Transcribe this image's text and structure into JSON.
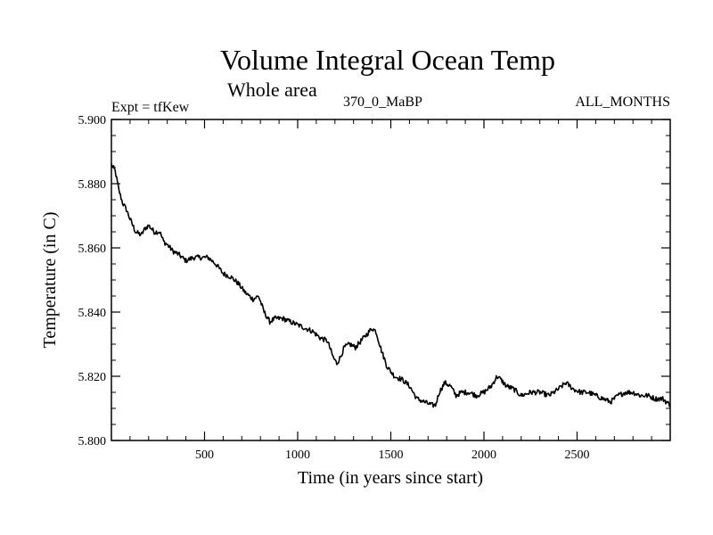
{
  "chart_data": {
    "type": "line",
    "title": "Volume Integral Ocean Temp",
    "subtitle": "Whole area",
    "annotations": {
      "expt": "Expt = tfKew",
      "run": "370_0_MaBP",
      "months": "ALL_MONTHS"
    },
    "xlabel": "Time (in years since start)",
    "ylabel": "Temperature (in C)",
    "xlim": [
      0,
      3000
    ],
    "ylim": [
      5.8,
      5.9
    ],
    "x_ticks": [
      500,
      1000,
      1500,
      2000,
      2500
    ],
    "x_tick_labels": [
      "500",
      "1000",
      "1500",
      "2000",
      "2500"
    ],
    "y_ticks": [
      5.8,
      5.82,
      5.84,
      5.86,
      5.88,
      5.9
    ],
    "y_tick_labels": [
      "5.800",
      "5.820",
      "5.840",
      "5.860",
      "5.880",
      "5.900"
    ],
    "grid": false,
    "legend": "none",
    "line_color": "#000000",
    "series": [
      {
        "x": [
          0,
          20,
          40,
          60,
          80,
          100,
          130,
          160,
          180,
          200,
          230,
          260,
          280,
          300,
          330,
          360,
          400,
          440,
          480,
          520,
          560,
          600,
          640,
          680,
          720,
          760,
          790,
          820,
          850,
          880,
          920,
          960,
          1000,
          1040,
          1080,
          1120,
          1160,
          1190,
          1210,
          1230,
          1250,
          1280,
          1310,
          1340,
          1370,
          1400,
          1420,
          1450,
          1480,
          1520,
          1560,
          1600,
          1640,
          1680,
          1720,
          1740,
          1760,
          1790,
          1820,
          1850,
          1880,
          1920,
          1960,
          2000,
          2040,
          2070,
          2090,
          2120,
          2160,
          2200,
          2250,
          2300,
          2350,
          2400,
          2440,
          2480,
          2520,
          2560,
          2600,
          2640,
          2680,
          2720,
          2760,
          2800,
          2840,
          2880,
          2920,
          2960,
          3000
        ],
        "y": [
          5.886,
          5.884,
          5.878,
          5.874,
          5.872,
          5.869,
          5.865,
          5.864,
          5.866,
          5.867,
          5.865,
          5.865,
          5.862,
          5.861,
          5.859,
          5.858,
          5.856,
          5.857,
          5.857,
          5.857,
          5.855,
          5.852,
          5.851,
          5.849,
          5.846,
          5.844,
          5.845,
          5.84,
          5.837,
          5.838,
          5.838,
          5.837,
          5.836,
          5.835,
          5.834,
          5.832,
          5.831,
          5.826,
          5.824,
          5.826,
          5.829,
          5.83,
          5.829,
          5.831,
          5.833,
          5.835,
          5.834,
          5.828,
          5.823,
          5.82,
          5.819,
          5.817,
          5.813,
          5.812,
          5.811,
          5.811,
          5.815,
          5.818,
          5.817,
          5.814,
          5.815,
          5.815,
          5.814,
          5.815,
          5.817,
          5.82,
          5.819,
          5.817,
          5.816,
          5.814,
          5.815,
          5.815,
          5.814,
          5.816,
          5.818,
          5.816,
          5.815,
          5.815,
          5.814,
          5.813,
          5.812,
          5.814,
          5.815,
          5.815,
          5.814,
          5.814,
          5.813,
          5.813,
          5.811
        ]
      }
    ]
  }
}
